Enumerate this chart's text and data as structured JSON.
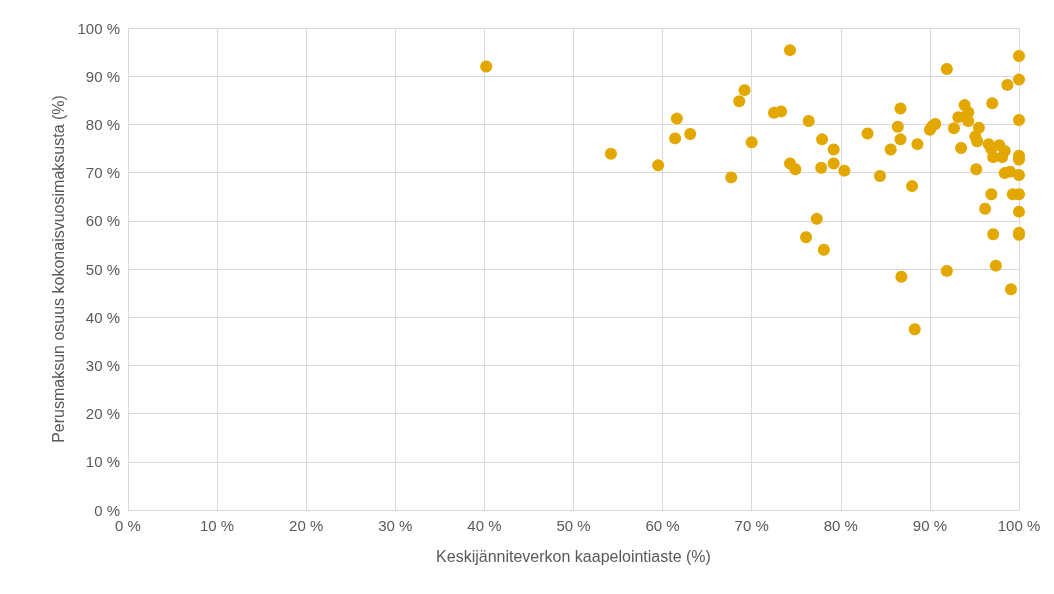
{
  "chart_data": {
    "type": "scatter",
    "xlabel": "Keskijänniteverkon kaapelointiaste (%)",
    "ylabel": "Perusmaksun osuus kokonaisvuosimaksusta (%)",
    "xlim": [
      0,
      100
    ],
    "ylim": [
      0,
      100
    ],
    "xticks": [
      {
        "value": 0,
        "label": "0 %"
      },
      {
        "value": 10,
        "label": "10 %"
      },
      {
        "value": 20,
        "label": "20 %"
      },
      {
        "value": 30,
        "label": "30 %"
      },
      {
        "value": 40,
        "label": "40 %"
      },
      {
        "value": 50,
        "label": "50 %"
      },
      {
        "value": 60,
        "label": "60 %"
      },
      {
        "value": 70,
        "label": "70 %"
      },
      {
        "value": 80,
        "label": "80 %"
      },
      {
        "value": 90,
        "label": "90 %"
      },
      {
        "value": 100,
        "label": "100 %"
      }
    ],
    "yticks": [
      {
        "value": 0,
        "label": "0 %"
      },
      {
        "value": 10,
        "label": "10 %"
      },
      {
        "value": 20,
        "label": "20 %"
      },
      {
        "value": 30,
        "label": "30 %"
      },
      {
        "value": 40,
        "label": "40 %"
      },
      {
        "value": 50,
        "label": "50 %"
      },
      {
        "value": 60,
        "label": "60 %"
      },
      {
        "value": 70,
        "label": "70 %"
      },
      {
        "value": 80,
        "label": "80 %"
      },
      {
        "value": 90,
        "label": "90 %"
      },
      {
        "value": 100,
        "label": "100 %"
      }
    ],
    "grid": true,
    "marker": "circle",
    "series": [
      {
        "color": "#e3a800",
        "x": [
          40.2,
          54.2,
          59.5,
          61.6,
          61.4,
          63.1,
          67.7,
          68.6,
          69.2,
          70.0,
          72.5,
          73.3,
          74.3,
          76.4,
          77.9,
          79.2,
          79.2,
          74.3,
          74.9,
          77.8,
          80.4,
          77.3,
          83.0,
          84.4,
          86.7,
          86.4,
          86.7,
          85.6,
          88.6,
          88.0,
          91.9,
          90.0,
          90.3,
          90.6,
          92.7,
          93.2,
          93.9,
          94.3,
          94.3,
          93.5,
          95.1,
          95.5,
          95.3,
          95.2,
          97.0,
          98.7,
          100,
          100,
          100,
          96.6,
          96.9,
          97.1,
          97.8,
          98.1,
          98.4,
          98.4,
          99.0,
          100,
          100,
          100,
          96.9,
          99.3,
          100,
          96.2,
          100,
          76.1,
          78.1,
          86.8,
          91.9,
          88.3,
          97.1,
          100,
          100,
          97.4,
          99.1
        ],
        "values": [
          92.0,
          73.9,
          71.5,
          81.2,
          77.1,
          78.0,
          69.0,
          84.8,
          87.1,
          76.3,
          82.4,
          82.7,
          95.4,
          80.7,
          76.9,
          74.8,
          71.9,
          71.9,
          70.7,
          71.0,
          70.4,
          60.4,
          78.1,
          69.3,
          83.3,
          79.5,
          76.9,
          74.8,
          75.9,
          67.2,
          91.5,
          78.9,
          79.7,
          80.1,
          79.2,
          81.5,
          84.0,
          82.5,
          80.7,
          75.1,
          77.5,
          79.3,
          76.5,
          70.7,
          84.4,
          88.2,
          94.2,
          89.3,
          80.9,
          75.9,
          74.9,
          73.2,
          75.7,
          73.2,
          74.5,
          69.9,
          70.2,
          73.5,
          72.7,
          69.5,
          65.5,
          65.5,
          65.5,
          62.5,
          61.9,
          56.6,
          54.0,
          48.4,
          49.6,
          37.5,
          57.2,
          57.5,
          57.1,
          50.7,
          45.8
        ]
      }
    ]
  }
}
